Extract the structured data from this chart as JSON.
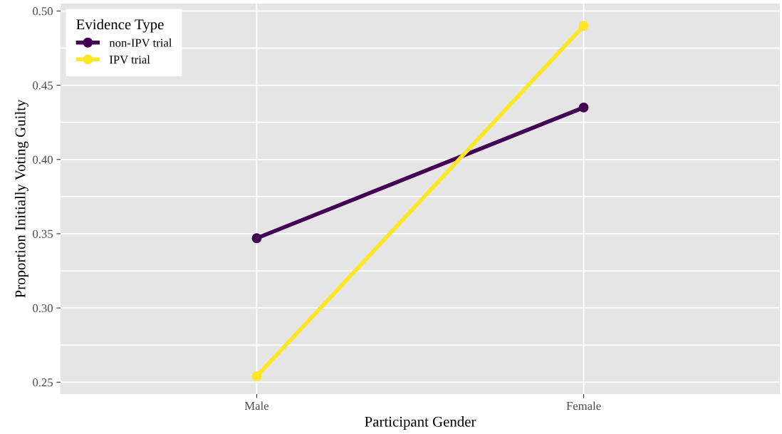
{
  "chart_data": {
    "type": "line",
    "xlabel": "Participant Gender",
    "ylabel": "Proportion Initially Voting Guilty",
    "categories": [
      "Male",
      "Female"
    ],
    "series": [
      {
        "name": "non-IPV trial",
        "color": "#440154",
        "values": [
          0.347,
          0.435
        ]
      },
      {
        "name": "IPV trial",
        "color": "#fde725",
        "values": [
          0.254,
          0.49
        ]
      }
    ],
    "ylim": [
      0.242,
      0.505
    ],
    "yticks": [
      0.25,
      {
        "value": 0.275,
        "label": null
      },
      {
        "value": 0.3,
        "label": "0.30"
      },
      {
        "value": 0.325,
        "label": null
      },
      0.35,
      {
        "value": 0.375,
        "label": null
      },
      {
        "value": 0.4,
        "label": "0.40"
      },
      {
        "value": 0.425,
        "label": null
      },
      0.45,
      {
        "value": 0.475,
        "label": null
      },
      {
        "value": 0.5,
        "label": "0.50"
      }
    ],
    "legend_title": "Evidence Type",
    "legend": "top left",
    "grid": true,
    "marker": "circle",
    "line_style": "solid"
  }
}
